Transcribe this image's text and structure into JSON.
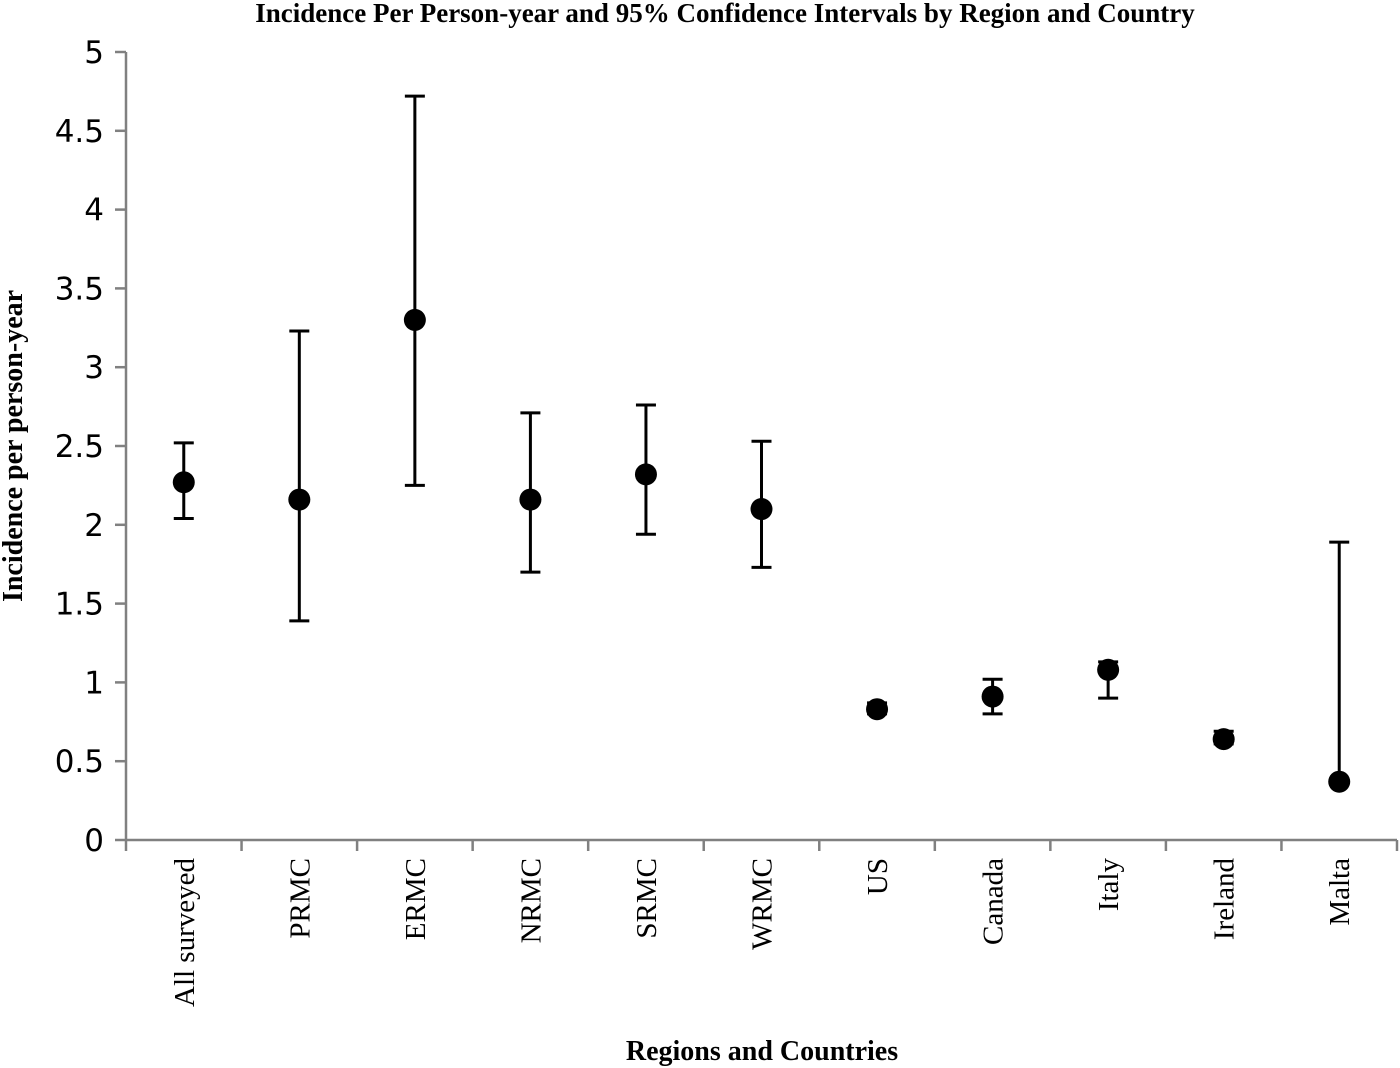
{
  "chart_data": {
    "type": "scatter",
    "title": "Incidence Per Person-year and 95% Confidence Intervals by Region and Country",
    "xlabel": "Regions and Countries",
    "ylabel": "Incidence per person-year",
    "ylim": [
      0,
      5
    ],
    "yticks": [
      "0",
      "0.5",
      "1",
      "1.5",
      "2",
      "2.5",
      "3",
      "3.5",
      "4",
      "4.5",
      "5"
    ],
    "categories": [
      "All surveyed",
      "PRMC",
      "ERMC",
      "NRMC",
      "SRMC",
      "WRMC",
      "US",
      "Canada",
      "Italy",
      "Ireland",
      "Malta"
    ],
    "values": [
      2.27,
      2.16,
      3.3,
      2.16,
      2.32,
      2.1,
      0.83,
      0.91,
      1.08,
      0.64,
      0.37
    ],
    "ci_lower": [
      2.04,
      1.39,
      2.25,
      1.7,
      1.94,
      1.73,
      0.8,
      0.8,
      0.9,
      0.61,
      0.37
    ],
    "ci_upper": [
      2.52,
      3.23,
      4.72,
      2.71,
      2.76,
      2.53,
      0.87,
      1.02,
      1.13,
      0.69,
      1.89
    ],
    "grid": false,
    "legend": "none"
  }
}
